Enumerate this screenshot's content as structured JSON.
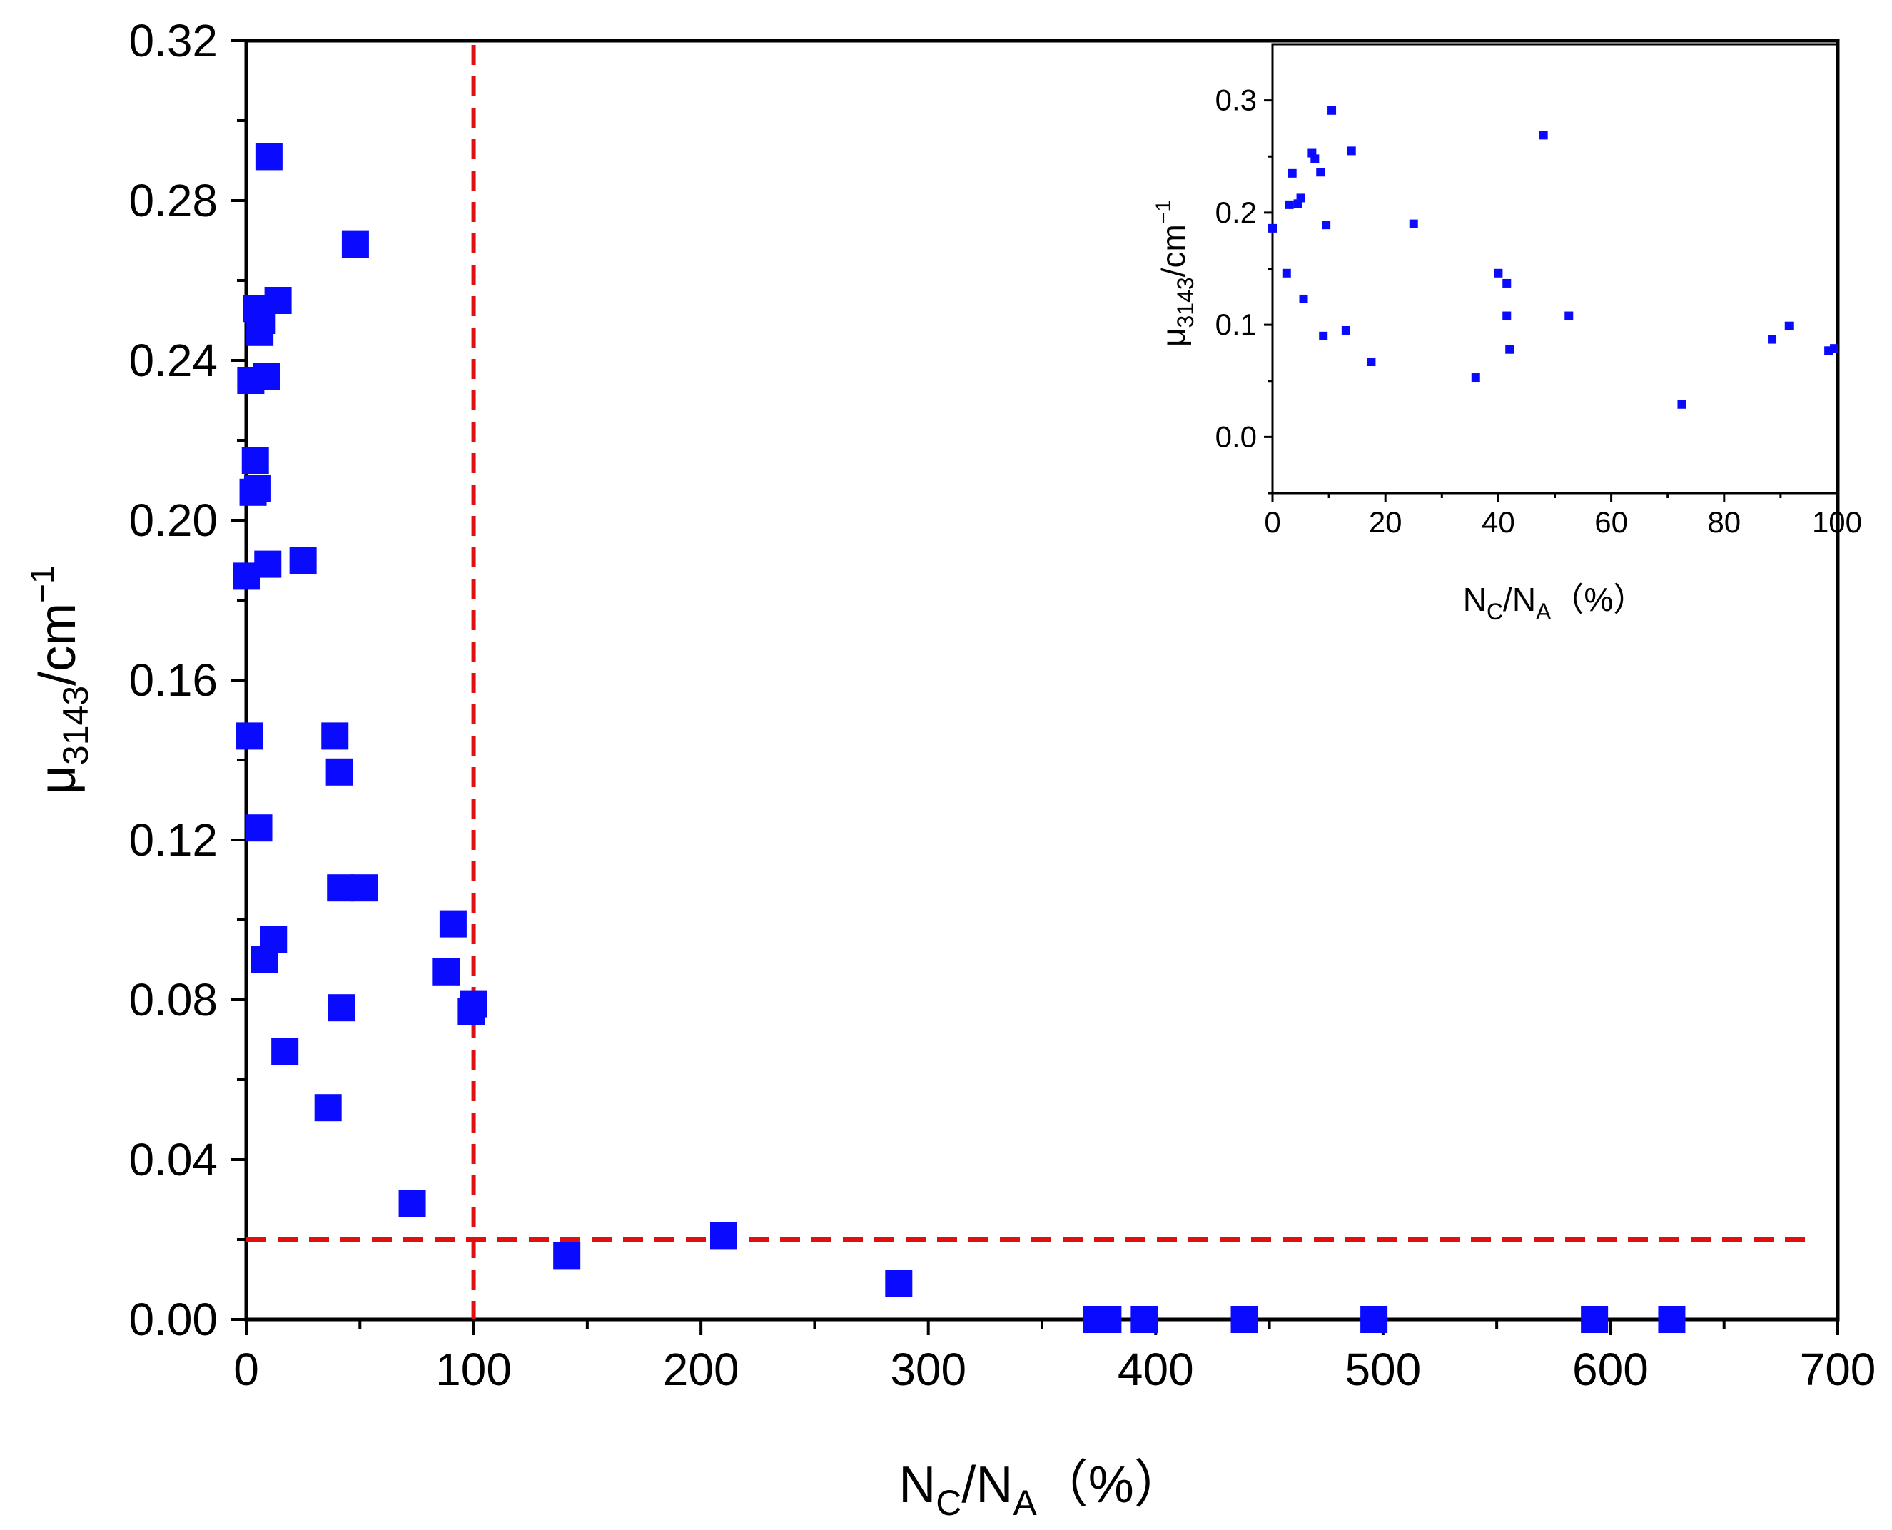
{
  "chart_data": [
    {
      "id": "main",
      "type": "scatter",
      "marker": "square",
      "color": "#0a0aff",
      "xlabel": {
        "main": "N",
        "sub1": "C",
        "slash": "/N",
        "sub2": "A",
        "tail": "（%）"
      },
      "ylabel": {
        "main": "μ",
        "sub": "3143",
        "mid": "/cm",
        "sup": "−1"
      },
      "xlim": [
        0,
        700
      ],
      "ylim": [
        0,
        0.32
      ],
      "xticks": [
        "0",
        "100",
        "200",
        "300",
        "400",
        "500",
        "600",
        "700"
      ],
      "yticks": [
        "0.00",
        "0.04",
        "0.08",
        "0.12",
        "0.16",
        "0.20",
        "0.24",
        "0.28",
        "0.32"
      ],
      "reference_lines": [
        {
          "orientation": "vertical",
          "x": 100,
          "color": "#e01010",
          "style": "dashed"
        },
        {
          "orientation": "horizontal",
          "y": 0.02,
          "color": "#e01010",
          "style": "dashed"
        }
      ],
      "points": [
        [
          0,
          0.186
        ],
        [
          1.5,
          0.146
        ],
        [
          2,
          0.235
        ],
        [
          3,
          0.207
        ],
        [
          4,
          0.215
        ],
        [
          4.5,
          0.253
        ],
        [
          5,
          0.208
        ],
        [
          5.5,
          0.123
        ],
        [
          6,
          0.247
        ],
        [
          7,
          0.25
        ],
        [
          8,
          0.09
        ],
        [
          9,
          0.236
        ],
        [
          9.5,
          0.189
        ],
        [
          10,
          0.291
        ],
        [
          12,
          0.095
        ],
        [
          14,
          0.255
        ],
        [
          17,
          0.067
        ],
        [
          25,
          0.19
        ],
        [
          36,
          0.053
        ],
        [
          39,
          0.146
        ],
        [
          41,
          0.137
        ],
        [
          41.5,
          0.108
        ],
        [
          42,
          0.078
        ],
        [
          48,
          0.269
        ],
        [
          52,
          0.108
        ],
        [
          73,
          0.029
        ],
        [
          88,
          0.087
        ],
        [
          91,
          0.099
        ],
        [
          99,
          0.077
        ],
        [
          100,
          0.079
        ],
        [
          141,
          0.016
        ],
        [
          210,
          0.021
        ],
        [
          287,
          0.009
        ],
        [
          374,
          0.0
        ],
        [
          379,
          0.0
        ],
        [
          395,
          0.0
        ],
        [
          439,
          0.0
        ],
        [
          496,
          0.0
        ],
        [
          593,
          0.0
        ],
        [
          627,
          0.0
        ]
      ]
    },
    {
      "id": "inset",
      "type": "scatter",
      "marker": "square",
      "color": "#0a0aff",
      "xlabel": {
        "main": "N",
        "sub1": "C",
        "slash": "/N",
        "sub2": "A",
        "tail": "（%）"
      },
      "ylabel": {
        "main": "μ",
        "sub": "3143",
        "mid": "/cm",
        "sup": "−1"
      },
      "xlim": [
        0,
        100
      ],
      "ylim": [
        -0.05,
        0.35
      ],
      "xticks": [
        "0",
        "20",
        "40",
        "60",
        "80",
        "100"
      ],
      "yticks": [
        "0.0",
        "0.1",
        "0.2",
        "0.3"
      ],
      "points": [
        [
          0,
          0.186
        ],
        [
          2.5,
          0.146
        ],
        [
          3,
          0.207
        ],
        [
          3.5,
          0.235
        ],
        [
          4.5,
          0.208
        ],
        [
          5,
          0.213
        ],
        [
          5.5,
          0.123
        ],
        [
          7,
          0.253
        ],
        [
          7.5,
          0.248
        ],
        [
          8.5,
          0.236
        ],
        [
          9,
          0.09
        ],
        [
          9.5,
          0.189
        ],
        [
          10.5,
          0.291
        ],
        [
          13,
          0.095
        ],
        [
          14,
          0.255
        ],
        [
          17.5,
          0.067
        ],
        [
          25,
          0.19
        ],
        [
          36,
          0.053
        ],
        [
          40,
          0.146
        ],
        [
          41.5,
          0.137
        ],
        [
          41.5,
          0.108
        ],
        [
          42,
          0.078
        ],
        [
          48,
          0.269
        ],
        [
          52.5,
          0.108
        ],
        [
          72.5,
          0.029
        ],
        [
          88.5,
          0.087
        ],
        [
          91.5,
          0.099
        ],
        [
          98.5,
          0.077
        ],
        [
          99.5,
          0.079
        ]
      ]
    }
  ]
}
